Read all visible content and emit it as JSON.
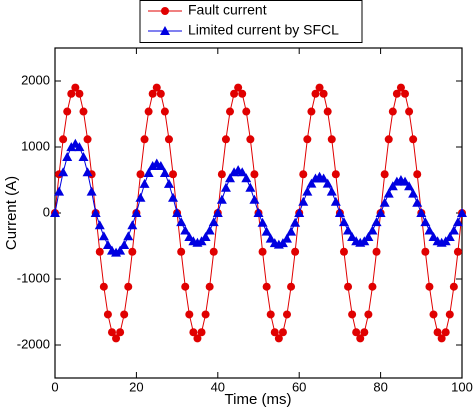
{
  "chart_data": {
    "type": "line",
    "x_label": "Time (ms)",
    "y_label": "Current (A)",
    "x": [
      0,
      1,
      2,
      3,
      4,
      5,
      6,
      7,
      8,
      9,
      10,
      11,
      12,
      13,
      14,
      15,
      16,
      17,
      18,
      19,
      20,
      21,
      22,
      23,
      24,
      25,
      26,
      27,
      28,
      29,
      30,
      31,
      32,
      33,
      34,
      35,
      36,
      37,
      38,
      39,
      40,
      41,
      42,
      43,
      44,
      45,
      46,
      47,
      48,
      49,
      50,
      51,
      52,
      53,
      54,
      55,
      56,
      57,
      58,
      59,
      60,
      61,
      62,
      63,
      64,
      65,
      66,
      67,
      68,
      69,
      70,
      71,
      72,
      73,
      74,
      75,
      76,
      77,
      78,
      79,
      80,
      81,
      82,
      83,
      84,
      85,
      86,
      87,
      88,
      89,
      90,
      91,
      92,
      93,
      94,
      95,
      96,
      97,
      98,
      99,
      100
    ],
    "series": [
      {
        "name": "Fault current",
        "color": "#e00000",
        "marker": "circle",
        "values": [
          0,
          587,
          1117,
          1537,
          1807,
          1900,
          1807,
          1537,
          1117,
          587,
          0,
          -587,
          -1117,
          -1537,
          -1807,
          -1900,
          -1807,
          -1537,
          -1117,
          -587,
          0,
          587,
          1117,
          1537,
          1807,
          1900,
          1807,
          1537,
          1117,
          587,
          0,
          -587,
          -1117,
          -1537,
          -1807,
          -1900,
          -1807,
          -1537,
          -1117,
          -587,
          0,
          587,
          1117,
          1537,
          1807,
          1900,
          1807,
          1537,
          1117,
          587,
          0,
          -587,
          -1117,
          -1537,
          -1807,
          -1900,
          -1807,
          -1537,
          -1117,
          -587,
          0,
          587,
          1117,
          1537,
          1807,
          1900,
          1807,
          1537,
          1117,
          587,
          0,
          -587,
          -1117,
          -1537,
          -1807,
          -1900,
          -1807,
          -1537,
          -1117,
          -587,
          0,
          587,
          1117,
          1537,
          1807,
          1900,
          1807,
          1537,
          1117,
          587,
          0,
          -587,
          -1117,
          -1537,
          -1807,
          -1900,
          -1807,
          -1537,
          -1117,
          -587,
          0
        ]
      },
      {
        "name": "Limited current by SFCL",
        "color": "#0000e0",
        "marker": "triangle",
        "values": [
          0,
          324,
          617,
          849,
          999,
          1050,
          999,
          849,
          617,
          324,
          0,
          -185,
          -353,
          -485,
          -571,
          -600,
          -571,
          -485,
          -353,
          -185,
          0,
          232,
          441,
          607,
          713,
          750,
          713,
          607,
          441,
          232,
          0,
          -139,
          -265,
          -364,
          -428,
          -450,
          -428,
          -364,
          -265,
          -139,
          0,
          201,
          382,
          526,
          618,
          650,
          618,
          526,
          382,
          201,
          0,
          -148,
          -282,
          -388,
          -456,
          -480,
          -456,
          -388,
          -282,
          -148,
          0,
          170,
          323,
          445,
          523,
          550,
          523,
          445,
          323,
          170,
          0,
          -139,
          -265,
          -364,
          -428,
          -450,
          -428,
          -364,
          -265,
          -139,
          0,
          155,
          294,
          405,
          476,
          500,
          476,
          405,
          294,
          155,
          0,
          -139,
          -265,
          -364,
          -428,
          -450,
          -428,
          -364,
          -265,
          -139,
          0
        ]
      }
    ],
    "xlim": [
      0,
      100
    ],
    "xticks": [
      0,
      20,
      40,
      60,
      80,
      100
    ],
    "ylim": [
      -2500,
      2500
    ],
    "yticks": [
      -2000,
      -1000,
      0,
      1000,
      2000
    ],
    "grid": false,
    "legend": "top"
  }
}
